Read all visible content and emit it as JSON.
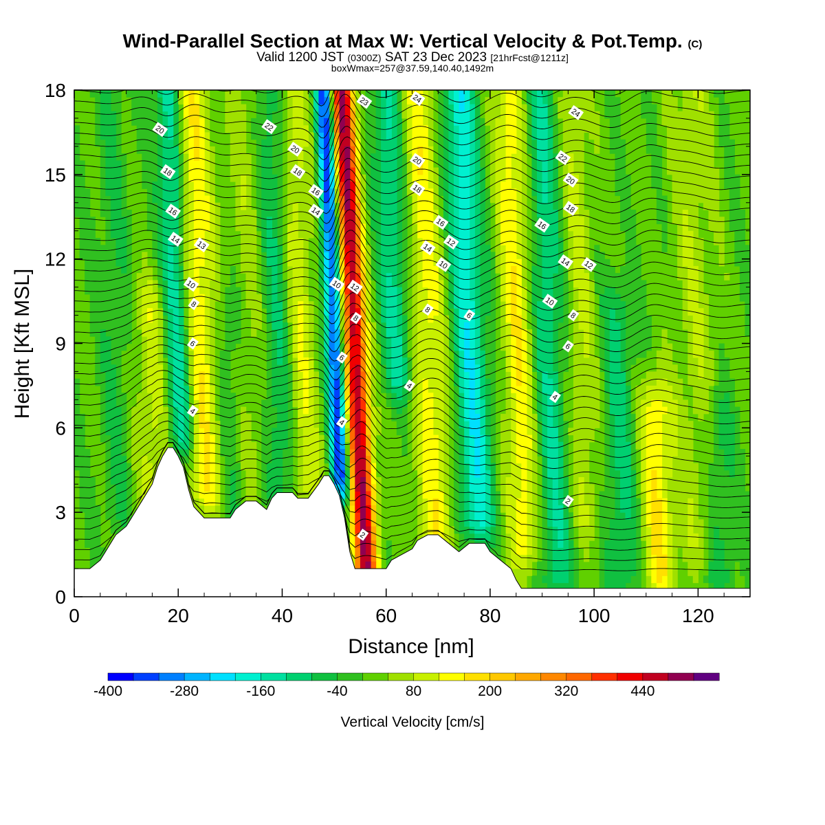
{
  "header": {
    "title": "Wind-Parallel Section at Max W: Vertical Velocity & Pot.Temp.",
    "title_mark": "(C)",
    "valid_prefix": "Valid 1200 JST",
    "valid_utc": "(0300Z)",
    "valid_date": "SAT 23 Dec 2023",
    "valid_fcst": "[21hrFcst@1211z]",
    "box_info": "boxWmax=257@37.59,140.40,1492m"
  },
  "chart_data": {
    "type": "heatmap",
    "xlabel": "Distance [nm]",
    "ylabel": "Height [Kft MSL]",
    "xlim": [
      0,
      130
    ],
    "ylim": [
      0,
      18
    ],
    "x_ticks": [
      "0",
      "20",
      "40",
      "60",
      "80",
      "100",
      "120"
    ],
    "y_ticks": [
      "0",
      "3",
      "6",
      "9",
      "12",
      "15",
      "18"
    ],
    "colorbar": {
      "label": "Vertical Velocity [cm/s]",
      "min": -400,
      "max": 520,
      "step": 40,
      "tick_labels": [
        "-400",
        "-280",
        "-160",
        "-40",
        "80",
        "200",
        "320",
        "440"
      ],
      "colors": [
        "#0000ff",
        "#0040ff",
        "#0080ff",
        "#00b4ff",
        "#00e0ff",
        "#00f0d0",
        "#00e0a0",
        "#00d070",
        "#10c040",
        "#30c020",
        "#60d000",
        "#a0e000",
        "#c8f000",
        "#ffff00",
        "#ffe000",
        "#ffc800",
        "#ffa800",
        "#ff8800",
        "#ff6800",
        "#ff3000",
        "#f00000",
        "#c00020",
        "#900050",
        "#600080"
      ]
    },
    "terrain_kft": [
      [
        0,
        1.0
      ],
      [
        3,
        1.0
      ],
      [
        5,
        1.3
      ],
      [
        6,
        1.6
      ],
      [
        7,
        1.9
      ],
      [
        8,
        2.2
      ],
      [
        10,
        2.5
      ],
      [
        11,
        2.8
      ],
      [
        12,
        3.1
      ],
      [
        13,
        3.4
      ],
      [
        15,
        4.0
      ],
      [
        16,
        4.6
      ],
      [
        17,
        5.0
      ],
      [
        18,
        5.3
      ],
      [
        19,
        5.3
      ],
      [
        20,
        5.0
      ],
      [
        21,
        4.6
      ],
      [
        22,
        3.8
      ],
      [
        23,
        3.2
      ],
      [
        25,
        2.8
      ],
      [
        27,
        2.8
      ],
      [
        30,
        2.8
      ],
      [
        31,
        3.1
      ],
      [
        33,
        3.4
      ],
      [
        35,
        3.4
      ],
      [
        37,
        3.1
      ],
      [
        38,
        3.5
      ],
      [
        39,
        3.7
      ],
      [
        42,
        3.7
      ],
      [
        43,
        3.5
      ],
      [
        45,
        3.5
      ],
      [
        47,
        4.0
      ],
      [
        48,
        4.3
      ],
      [
        49,
        4.3
      ],
      [
        50,
        4.0
      ],
      [
        51,
        3.6
      ],
      [
        52,
        2.8
      ],
      [
        53,
        1.6
      ],
      [
        54,
        1.0
      ],
      [
        55,
        1.0
      ],
      [
        56,
        1.0
      ],
      [
        57,
        1.0
      ],
      [
        58,
        1.0
      ],
      [
        60,
        1.0
      ],
      [
        61,
        1.3
      ],
      [
        63,
        1.5
      ],
      [
        65,
        1.7
      ],
      [
        66,
        2.0
      ],
      [
        68,
        2.2
      ],
      [
        70,
        2.2
      ],
      [
        72,
        1.9
      ],
      [
        74,
        1.6
      ],
      [
        76,
        1.9
      ],
      [
        79,
        1.9
      ],
      [
        80,
        1.6
      ],
      [
        82,
        1.3
      ],
      [
        84,
        1.0
      ],
      [
        85,
        0.6
      ],
      [
        86,
        0.3
      ],
      [
        90,
        0.3
      ],
      [
        130,
        0.3
      ]
    ],
    "updrafts": [
      {
        "x": 55,
        "v": 470,
        "w": 2.2,
        "top": 18,
        "bottom": 1,
        "tilt": -3.5
      },
      {
        "x": 69,
        "v": 130,
        "w": 3.5,
        "top": 18,
        "bottom": 1.8,
        "tilt": -3.0
      },
      {
        "x": 86,
        "v": 140,
        "w": 3.0,
        "top": 18,
        "bottom": 2,
        "tilt": -2.5
      },
      {
        "x": 112,
        "v": 150,
        "w": 3.0,
        "top": 6.5,
        "bottom": 1,
        "tilt": -2.0
      },
      {
        "x": 25,
        "v": 150,
        "w": 3.5,
        "top": 18,
        "bottom": 4,
        "tilt": -3.0
      },
      {
        "x": 44,
        "v": 110,
        "w": 3.0,
        "top": 18,
        "bottom": 4,
        "tilt": -2.5
      },
      {
        "x": 15,
        "v": 90,
        "w": 3.0,
        "top": 10,
        "bottom": 3,
        "tilt": -1.0
      },
      {
        "x": 98,
        "v": 70,
        "w": 3.0,
        "top": 18,
        "bottom": 3,
        "tilt": -2.0
      },
      {
        "x": 120,
        "v": 60,
        "w": 4.0,
        "top": 18,
        "bottom": 2,
        "tilt": -1.5
      },
      {
        "x": 34,
        "v": 50,
        "w": 3.0,
        "top": 18,
        "bottom": 4,
        "tilt": -1.5
      }
    ],
    "downdrafts": [
      {
        "x": 51,
        "v": -370,
        "w": 1.6,
        "top": 18,
        "bottom": 4.5,
        "tilt": -3.0
      },
      {
        "x": 63,
        "v": -140,
        "w": 3.0,
        "top": 18,
        "bottom": 8,
        "tilt": -3.0
      },
      {
        "x": 77,
        "v": -200,
        "w": 3.2,
        "top": 18,
        "bottom": 3,
        "tilt": -3.0
      },
      {
        "x": 21,
        "v": -180,
        "w": 2.5,
        "top": 18,
        "bottom": 6,
        "tilt": -3.0
      },
      {
        "x": 92,
        "v": -130,
        "w": 3.0,
        "top": 18,
        "bottom": 1,
        "tilt": -2.5
      },
      {
        "x": 105,
        "v": -100,
        "w": 3.0,
        "top": 10,
        "bottom": 1,
        "tilt": -1.5
      },
      {
        "x": 40,
        "v": -100,
        "w": 3.0,
        "top": 18,
        "bottom": 4,
        "tilt": -2.0
      },
      {
        "x": 30,
        "v": -60,
        "w": 3.0,
        "top": 10,
        "bottom": 3,
        "tilt": -1.5
      },
      {
        "x": 124,
        "v": -80,
        "w": 3.0,
        "top": 6,
        "bottom": 1,
        "tilt": -1.0
      },
      {
        "x": 8,
        "v": -50,
        "w": 3.0,
        "top": 18,
        "bottom": 3,
        "tilt": -1.0
      }
    ],
    "contour_labels": [
      {
        "x": 16.5,
        "y": 16.6,
        "text": "20"
      },
      {
        "x": 18,
        "y": 15.1,
        "text": "18"
      },
      {
        "x": 19,
        "y": 13.7,
        "text": "16"
      },
      {
        "x": 19.5,
        "y": 12.7,
        "text": "14"
      },
      {
        "x": 24.5,
        "y": 12.5,
        "text": "13"
      },
      {
        "x": 22.5,
        "y": 11.1,
        "text": "10"
      },
      {
        "x": 23,
        "y": 10.4,
        "text": "8"
      },
      {
        "x": 22.8,
        "y": 9.0,
        "text": "6"
      },
      {
        "x": 22.8,
        "y": 6.6,
        "text": "4"
      },
      {
        "x": 37.5,
        "y": 16.7,
        "text": "22"
      },
      {
        "x": 42.5,
        "y": 15.9,
        "text": "20"
      },
      {
        "x": 43,
        "y": 15.1,
        "text": "18"
      },
      {
        "x": 46.5,
        "y": 14.4,
        "text": "16"
      },
      {
        "x": 46.5,
        "y": 13.7,
        "text": "14"
      },
      {
        "x": 50.5,
        "y": 11.1,
        "text": "10"
      },
      {
        "x": 54,
        "y": 11.0,
        "text": "12"
      },
      {
        "x": 54.2,
        "y": 9.9,
        "text": "8"
      },
      {
        "x": 51.5,
        "y": 8.5,
        "text": "6"
      },
      {
        "x": 51.5,
        "y": 6.2,
        "text": "4"
      },
      {
        "x": 55.8,
        "y": 17.6,
        "text": "23"
      },
      {
        "x": 66,
        "y": 17.7,
        "text": "24"
      },
      {
        "x": 66,
        "y": 15.5,
        "text": "20"
      },
      {
        "x": 66,
        "y": 14.5,
        "text": "18"
      },
      {
        "x": 70.5,
        "y": 13.3,
        "text": "16"
      },
      {
        "x": 68,
        "y": 12.4,
        "text": "14"
      },
      {
        "x": 72.5,
        "y": 12.6,
        "text": "12"
      },
      {
        "x": 71,
        "y": 11.8,
        "text": "10"
      },
      {
        "x": 68,
        "y": 10.2,
        "text": "8"
      },
      {
        "x": 76,
        "y": 10.0,
        "text": "6"
      },
      {
        "x": 64.5,
        "y": 7.5,
        "text": "4"
      },
      {
        "x": 96.5,
        "y": 17.2,
        "text": "24"
      },
      {
        "x": 94,
        "y": 15.6,
        "text": "22"
      },
      {
        "x": 95.5,
        "y": 14.8,
        "text": "20"
      },
      {
        "x": 95.5,
        "y": 13.8,
        "text": "18"
      },
      {
        "x": 90,
        "y": 13.2,
        "text": "16"
      },
      {
        "x": 94.5,
        "y": 11.9,
        "text": "14"
      },
      {
        "x": 99,
        "y": 11.8,
        "text": "12"
      },
      {
        "x": 91.5,
        "y": 10.5,
        "text": "10"
      },
      {
        "x": 96,
        "y": 10.0,
        "text": "8"
      },
      {
        "x": 95,
        "y": 8.9,
        "text": "6"
      },
      {
        "x": 92.5,
        "y": 7.1,
        "text": "4"
      },
      {
        "x": 95,
        "y": 3.4,
        "text": "2"
      },
      {
        "x": 55.5,
        "y": 2.2,
        "text": "2"
      }
    ]
  }
}
